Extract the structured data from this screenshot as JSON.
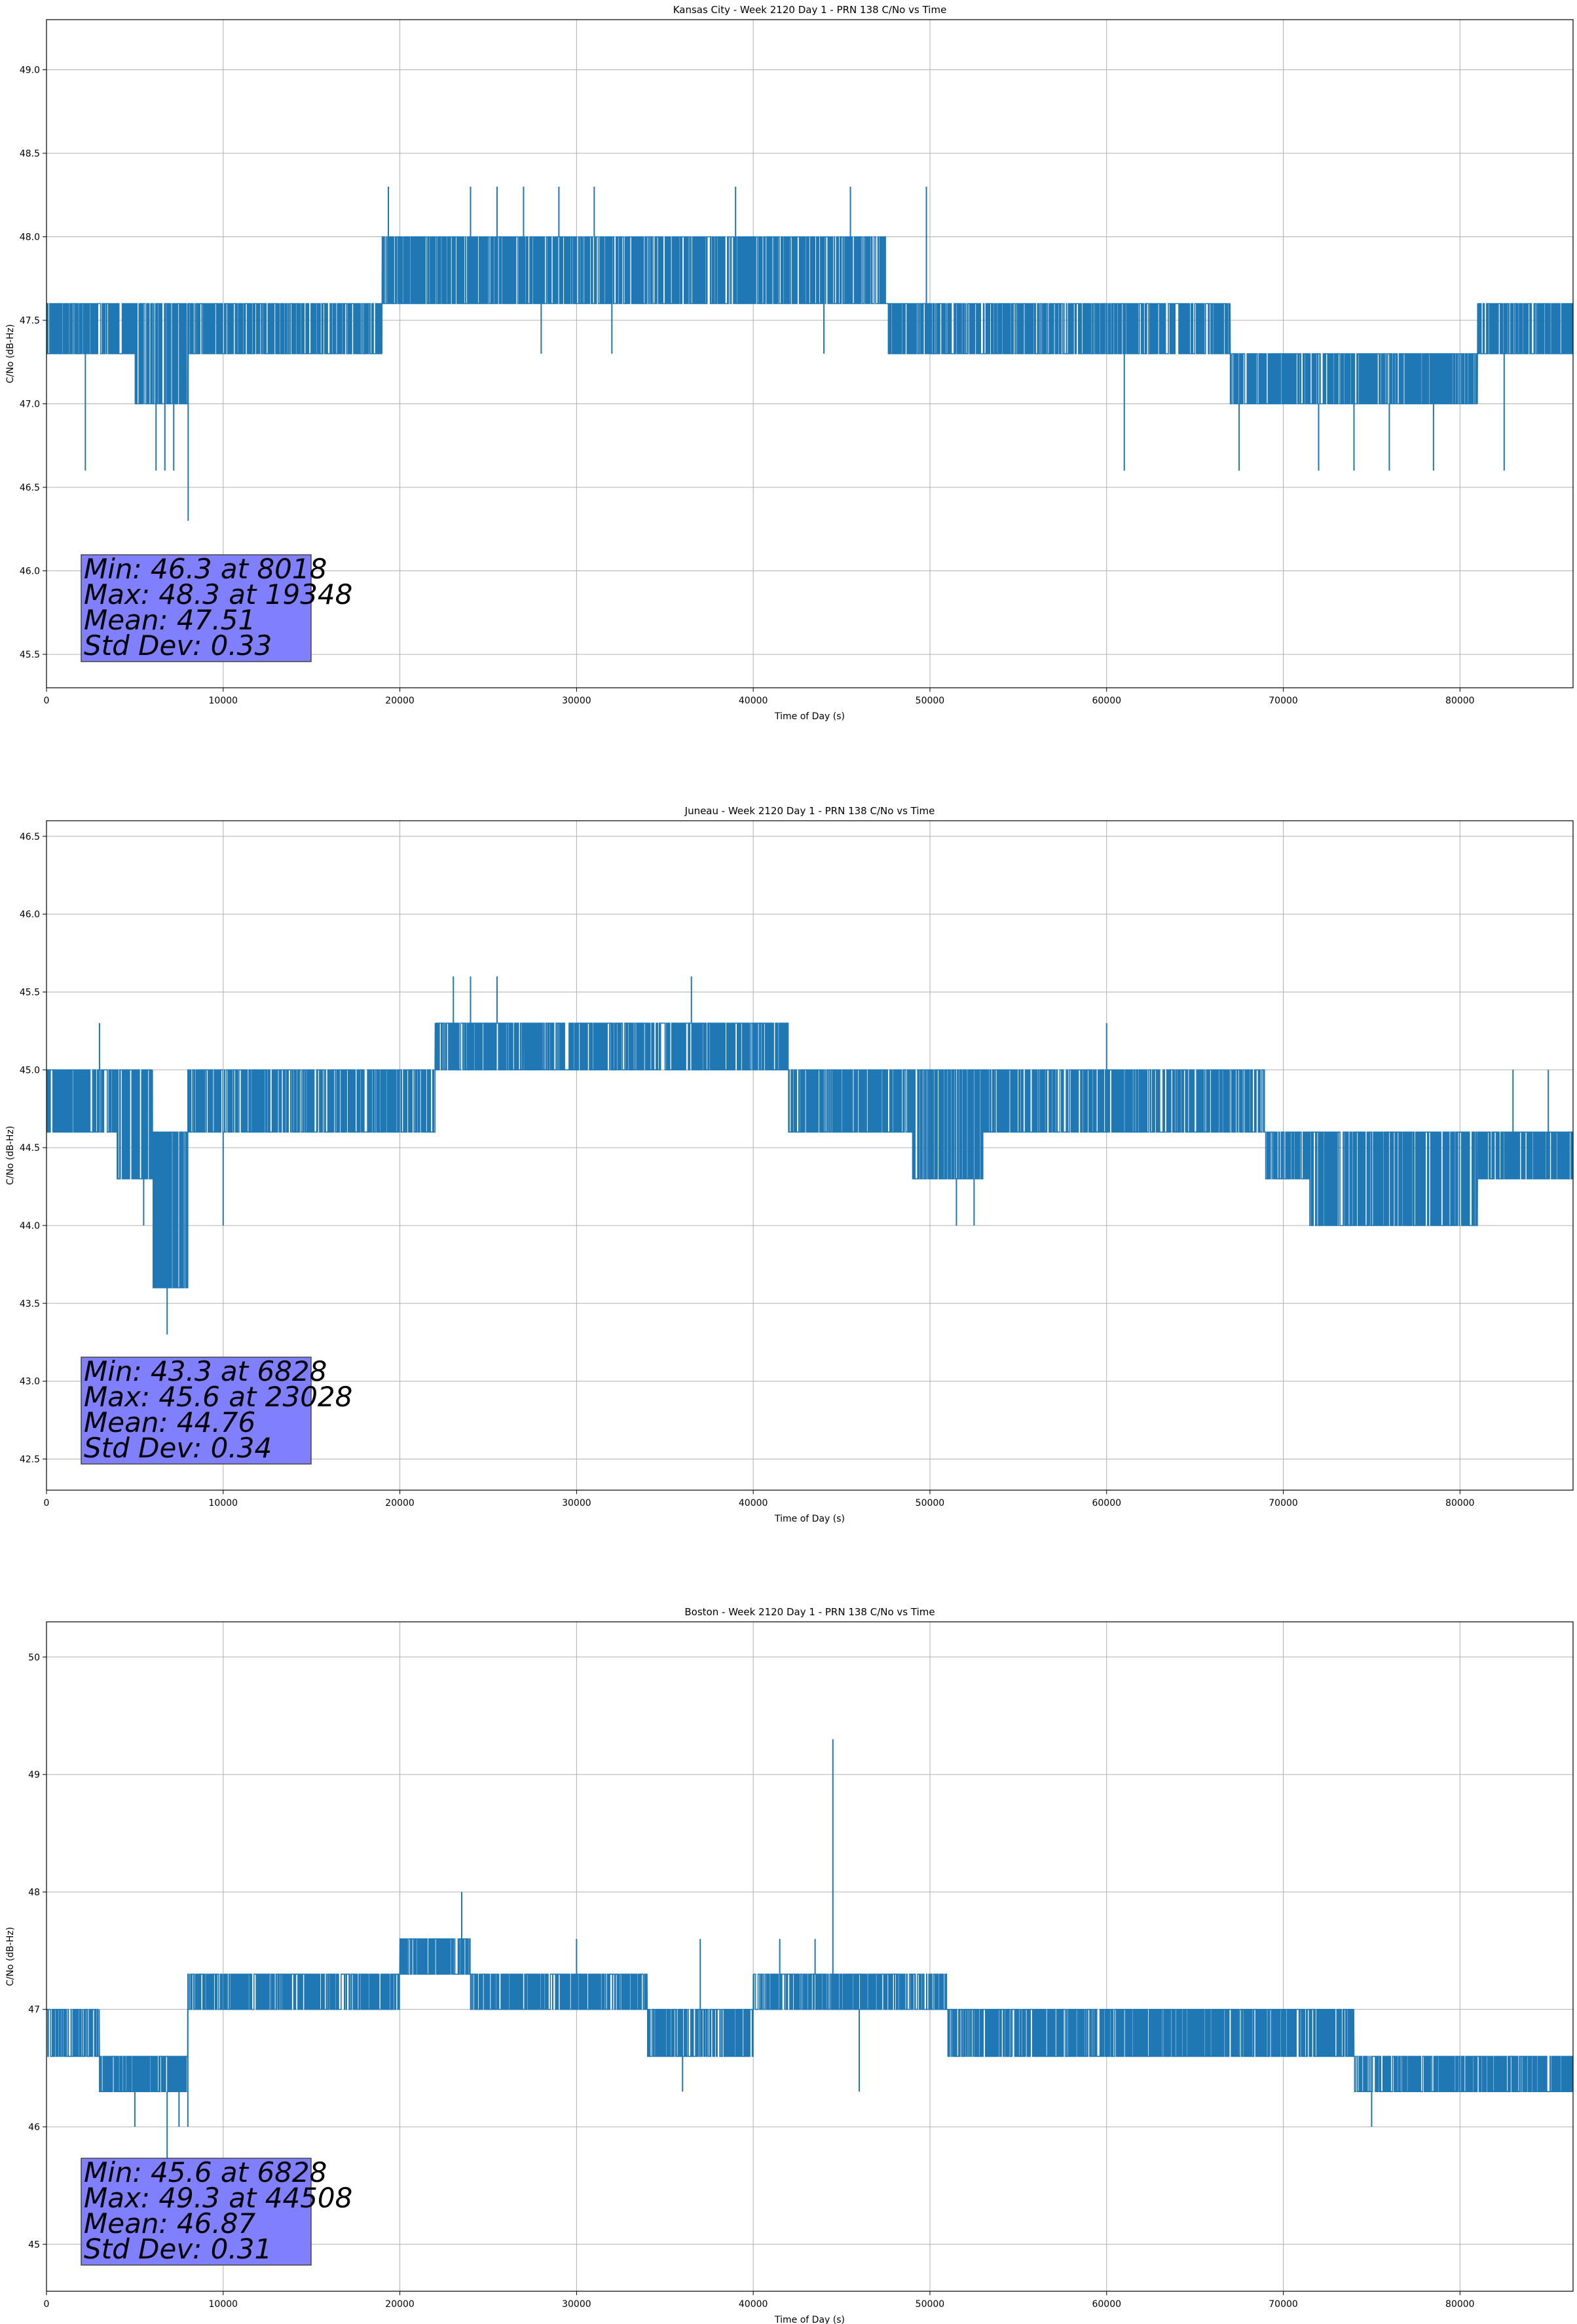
{
  "chart_data": [
    {
      "type": "line",
      "title": "Kansas City - Week 2120 Day 1 - PRN 138 C/No vs Time",
      "xlabel": "Time of Day (s)",
      "ylabel": "C/No (dB-Hz)",
      "xlim": [
        0,
        86400
      ],
      "ylim": [
        45.3,
        49.3
      ],
      "xticks": [
        0,
        10000,
        20000,
        30000,
        40000,
        50000,
        60000,
        70000,
        80000
      ],
      "yticks": [
        45.5,
        46.0,
        46.5,
        47.0,
        47.5,
        48.0,
        48.5,
        49.0
      ],
      "ytick_labels": [
        "45.5",
        "46.0",
        "46.5",
        "47.0",
        "47.5",
        "48.0",
        "48.5",
        "49.0"
      ],
      "grid": true,
      "line_color": "#1f77b4",
      "series": [
        {
          "segments": [
            [
              0,
              5000,
              47.3,
              47.6
            ],
            [
              5000,
              8000,
              47.0,
              47.6
            ],
            [
              8000,
              12000,
              47.3,
              47.6
            ],
            [
              12000,
              19000,
              47.3,
              47.6
            ],
            [
              19000,
              23000,
              47.6,
              48.0
            ],
            [
              23000,
              29000,
              47.6,
              48.0
            ],
            [
              29000,
              47500,
              47.6,
              48.0
            ],
            [
              47500,
              60000,
              47.3,
              47.6
            ],
            [
              60000,
              67000,
              47.3,
              47.6
            ],
            [
              67000,
              81000,
              47.0,
              47.3
            ],
            [
              81000,
              86400,
              47.3,
              47.6
            ]
          ]
        }
      ],
      "spikes": [
        [
          8018,
          46.3
        ],
        [
          19348,
          48.3
        ],
        [
          6200,
          46.6
        ],
        [
          6700,
          46.6
        ],
        [
          7200,
          46.6
        ],
        [
          2200,
          46.6
        ],
        [
          24000,
          48.3
        ],
        [
          25500,
          48.3
        ],
        [
          27000,
          48.3
        ],
        [
          29000,
          48.3
        ],
        [
          31000,
          48.3
        ],
        [
          39000,
          48.3
        ],
        [
          45500,
          48.3
        ],
        [
          49800,
          48.3
        ],
        [
          61000,
          46.6
        ],
        [
          67500,
          46.6
        ],
        [
          72000,
          46.6
        ],
        [
          74000,
          46.6
        ],
        [
          76000,
          46.6
        ],
        [
          78500,
          46.6
        ],
        [
          82500,
          46.6
        ],
        [
          28000,
          47.3
        ],
        [
          32000,
          47.3
        ],
        [
          44000,
          47.3
        ]
      ],
      "stats": {
        "min": "Min: 46.3 at 8018",
        "max": "Max: 48.3 at 19348",
        "mean": "Mean: 47.51",
        "std": "Std Dev: 0.33"
      },
      "stats_color": "#8080ff"
    },
    {
      "type": "line",
      "title": "Juneau - Week 2120 Day 1 - PRN 138 C/No vs Time",
      "xlabel": "Time of Day (s)",
      "ylabel": "C/No (dB-Hz)",
      "xlim": [
        0,
        86400
      ],
      "ylim": [
        42.3,
        46.6
      ],
      "xticks": [
        0,
        10000,
        20000,
        30000,
        40000,
        50000,
        60000,
        70000,
        80000
      ],
      "yticks": [
        42.5,
        43.0,
        43.5,
        44.0,
        44.5,
        45.0,
        45.5,
        46.0,
        46.5
      ],
      "ytick_labels": [
        "42.5",
        "43.0",
        "43.5",
        "44.0",
        "44.5",
        "45.0",
        "45.5",
        "46.0",
        "46.5"
      ],
      "grid": true,
      "line_color": "#1f77b4",
      "series": [
        {
          "segments": [
            [
              0,
              4000,
              44.6,
              45.0
            ],
            [
              4000,
              6000,
              44.3,
              45.0
            ],
            [
              6000,
              8000,
              43.6,
              44.6
            ],
            [
              8000,
              22000,
              44.6,
              45.0
            ],
            [
              22000,
              27000,
              45.0,
              45.3
            ],
            [
              27000,
              42000,
              45.0,
              45.3
            ],
            [
              42000,
              49000,
              44.6,
              45.0
            ],
            [
              49000,
              53000,
              44.3,
              45.0
            ],
            [
              53000,
              69000,
              44.6,
              45.0
            ],
            [
              69000,
              71500,
              44.3,
              44.6
            ],
            [
              71500,
              81000,
              44.0,
              44.6
            ],
            [
              81000,
              86400,
              44.3,
              44.6
            ]
          ]
        }
      ],
      "spikes": [
        [
          6828,
          43.3
        ],
        [
          23028,
          45.6
        ],
        [
          24000,
          45.6
        ],
        [
          25500,
          45.6
        ],
        [
          36500,
          45.6
        ],
        [
          10000,
          44.0
        ],
        [
          5500,
          44.0
        ],
        [
          51500,
          44.0
        ],
        [
          52500,
          44.0
        ],
        [
          75000,
          44.0
        ],
        [
          83000,
          45.0
        ],
        [
          85000,
          45.0
        ],
        [
          3000,
          45.3
        ],
        [
          60000,
          45.3
        ]
      ],
      "stats": {
        "min": "Min: 43.3 at 6828",
        "max": "Max: 45.6 at 23028",
        "mean": "Mean: 44.76",
        "std": "Std Dev: 0.34"
      },
      "stats_color": "#8080ff"
    },
    {
      "type": "line",
      "title": "Boston - Week 2120 Day 1 - PRN 138 C/No vs Time",
      "xlabel": "Time of Day (s)",
      "ylabel": "C/No (dB-Hz)",
      "xlim": [
        0,
        86400
      ],
      "ylim": [
        44.6,
        50.3
      ],
      "xticks": [
        0,
        10000,
        20000,
        30000,
        40000,
        50000,
        60000,
        70000,
        80000
      ],
      "yticks": [
        45,
        46,
        47,
        48,
        49,
        50
      ],
      "ytick_labels": [
        "45",
        "46",
        "47",
        "48",
        "49",
        "50"
      ],
      "grid": true,
      "line_color": "#1f77b4",
      "series": [
        {
          "segments": [
            [
              0,
              3000,
              46.6,
              47.0
            ],
            [
              3000,
              8000,
              46.3,
              46.6
            ],
            [
              8000,
              20000,
              47.0,
              47.3
            ],
            [
              20000,
              24000,
              47.3,
              47.6
            ],
            [
              24000,
              34000,
              47.0,
              47.3
            ],
            [
              34000,
              40000,
              46.6,
              47.0
            ],
            [
              40000,
              51000,
              47.0,
              47.3
            ],
            [
              51000,
              74000,
              46.6,
              47.0
            ],
            [
              74000,
              80000,
              46.3,
              46.6
            ],
            [
              80000,
              86400,
              46.3,
              46.6
            ]
          ]
        }
      ],
      "spikes": [
        [
          44508,
          49.3
        ],
        [
          6828,
          45.6
        ],
        [
          23500,
          48.0
        ],
        [
          30000,
          47.6
        ],
        [
          37000,
          47.6
        ],
        [
          41500,
          47.6
        ],
        [
          43500,
          47.6
        ],
        [
          5000,
          46.0
        ],
        [
          7500,
          46.0
        ],
        [
          8000,
          46.0
        ],
        [
          75000,
          46.0
        ],
        [
          36000,
          46.3
        ],
        [
          46000,
          46.3
        ]
      ],
      "stats": {
        "min": "Min: 45.6 at 6828",
        "max": "Max: 49.3 at 44508",
        "mean": "Mean: 46.87",
        "std": "Std Dev: 0.31"
      },
      "stats_color": "#8080ff"
    }
  ]
}
